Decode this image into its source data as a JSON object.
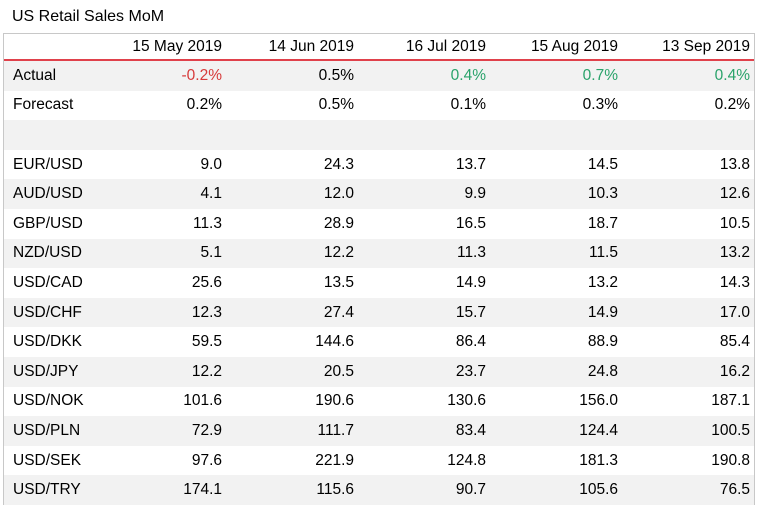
{
  "chart_data": {
    "type": "table",
    "title": "US Retail Sales MoM",
    "columns": [
      "15 May 2019",
      "14 Jun 2019",
      "16 Jul 2019",
      "15 Aug 2019",
      "13 Sep 2019"
    ],
    "rows": [
      {
        "label": "Actual",
        "values": [
          "-0.2%",
          "0.5%",
          "0.4%",
          "0.7%",
          "0.4%"
        ],
        "tones": [
          "neg",
          "",
          "pos",
          "pos",
          "pos"
        ]
      },
      {
        "label": "Forecast",
        "values": [
          "0.2%",
          "0.5%",
          "0.1%",
          "0.3%",
          "0.2%"
        ],
        "tones": [
          "",
          "",
          "",
          "",
          ""
        ]
      },
      {
        "label": "",
        "values": [
          "",
          "",
          "",
          "",
          ""
        ],
        "tones": [
          "",
          "",
          "",
          "",
          ""
        ]
      },
      {
        "label": "EUR/USD",
        "values": [
          "9.0",
          "24.3",
          "13.7",
          "14.5",
          "13.8"
        ]
      },
      {
        "label": "AUD/USD",
        "values": [
          "4.1",
          "12.0",
          "9.9",
          "10.3",
          "12.6"
        ]
      },
      {
        "label": "GBP/USD",
        "values": [
          "11.3",
          "28.9",
          "16.5",
          "18.7",
          "10.5"
        ]
      },
      {
        "label": "NZD/USD",
        "values": [
          "5.1",
          "12.2",
          "11.3",
          "11.5",
          "13.2"
        ]
      },
      {
        "label": "USD/CAD",
        "values": [
          "25.6",
          "13.5",
          "14.9",
          "13.2",
          "14.3"
        ]
      },
      {
        "label": "USD/CHF",
        "values": [
          "12.3",
          "27.4",
          "15.7",
          "14.9",
          "17.0"
        ]
      },
      {
        "label": "USD/DKK",
        "values": [
          "59.5",
          "144.6",
          "86.4",
          "88.9",
          "85.4"
        ]
      },
      {
        "label": "USD/JPY",
        "values": [
          "12.2",
          "20.5",
          "23.7",
          "24.8",
          "16.2"
        ]
      },
      {
        "label": "USD/NOK",
        "values": [
          "101.6",
          "190.6",
          "130.6",
          "156.0",
          "187.1"
        ]
      },
      {
        "label": "USD/PLN",
        "values": [
          "72.9",
          "111.7",
          "83.4",
          "124.4",
          "100.5"
        ]
      },
      {
        "label": "USD/SEK",
        "values": [
          "97.6",
          "221.9",
          "124.8",
          "181.3",
          "190.8"
        ]
      },
      {
        "label": "USD/TRY",
        "values": [
          "174.1",
          "115.6",
          "90.7",
          "105.6",
          "76.5"
        ]
      }
    ]
  },
  "colors": {
    "header_rule": "#e0414b",
    "positive": "#2aa36b",
    "negative": "#d73a3a",
    "stripe": "#f2f2f2"
  }
}
